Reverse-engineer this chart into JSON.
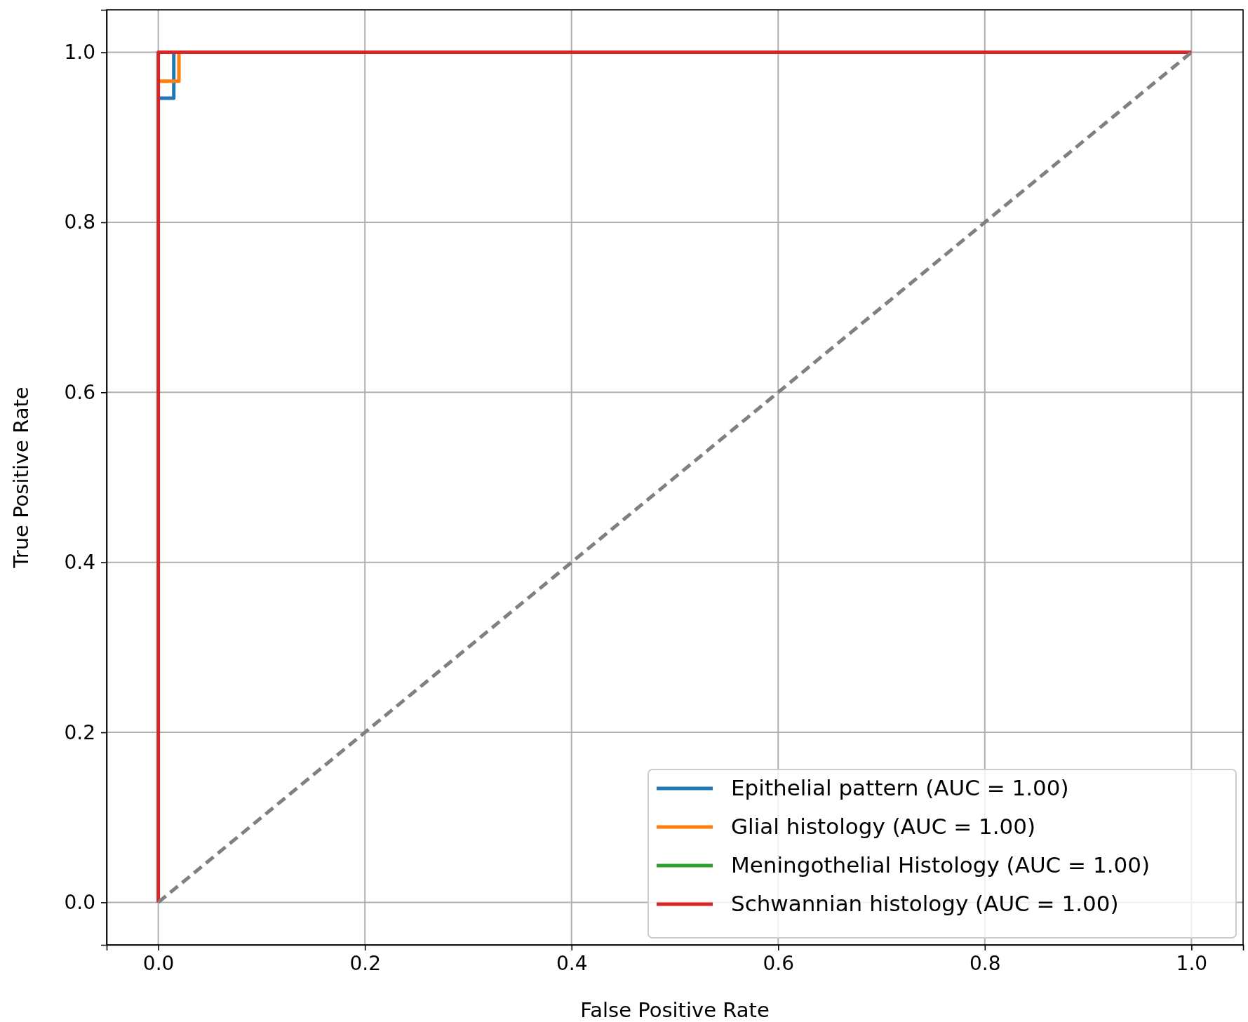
{
  "chart_data": {
    "type": "line",
    "xlabel": "False Positive Rate",
    "ylabel": "True Positive Rate",
    "xlim": [
      -0.05,
      1.05
    ],
    "ylim": [
      -0.05,
      1.05
    ],
    "xticks": [
      {
        "value": 0,
        "label": "0.0"
      },
      {
        "value": 0.2,
        "label": "0.2"
      },
      {
        "value": 0.4,
        "label": "0.4"
      },
      {
        "value": 0.6,
        "label": "0.6"
      },
      {
        "value": 0.8,
        "label": "0.8"
      },
      {
        "value": 1,
        "label": "1.0"
      }
    ],
    "yticks": [
      {
        "value": 0,
        "label": "0.0"
      },
      {
        "value": 0.2,
        "label": "0.2"
      },
      {
        "value": 0.4,
        "label": "0.4"
      },
      {
        "value": 0.6,
        "label": "0.6"
      },
      {
        "value": 0.8,
        "label": "0.8"
      },
      {
        "value": 1,
        "label": "1.0"
      }
    ],
    "grid": true,
    "legend": "bottom right",
    "series": [
      {
        "name": "Epithelial pattern (AUC = 1.00)",
        "color": "#1f77b4",
        "x": [
          0,
          0.015,
          0.015
        ],
        "values": [
          0.946,
          0.946,
          1
        ]
      },
      {
        "name": "Glial histology (AUC = 1.00)",
        "color": "#ff7f0e",
        "x": [
          0,
          0.02,
          0.02
        ],
        "values": [
          0.966,
          0.966,
          1
        ]
      },
      {
        "name": "Meningothelial Histology (AUC = 1.00)",
        "color": "#2ca02c"
      },
      {
        "name": "Schwannian histology (AUC = 1.00)",
        "color": "#d62728",
        "x": [
          0,
          0,
          1
        ],
        "values": [
          0,
          1,
          1
        ]
      },
      {
        "color": "#808080",
        "line_style": "dashed",
        "x": [
          0,
          1
        ],
        "values": [
          0,
          1
        ]
      }
    ]
  }
}
